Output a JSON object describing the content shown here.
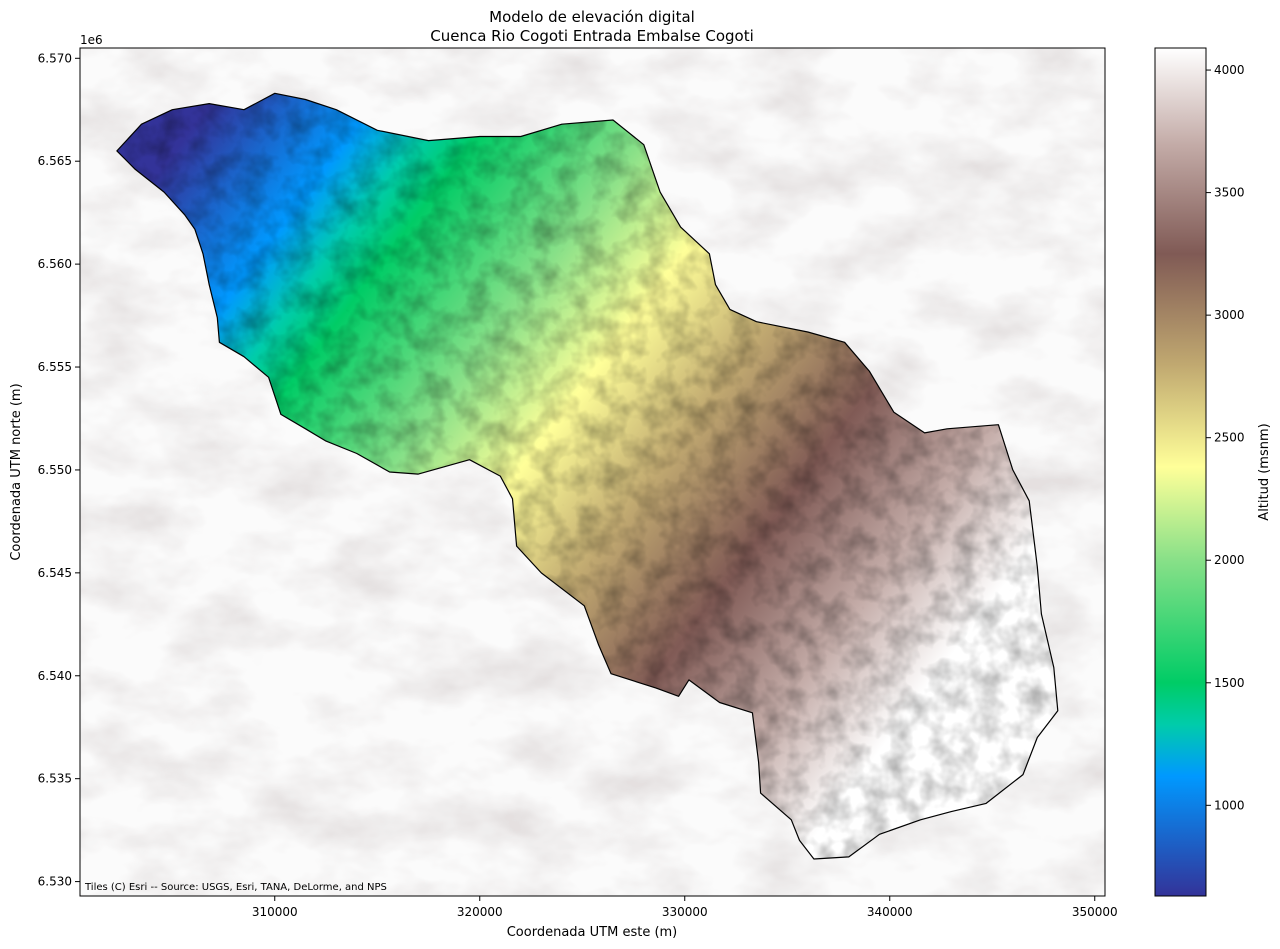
{
  "map": {
    "title": "Modelo de elevación digital",
    "subtitle": "Cuenca Rio Cogoti Entrada Embalse Cogoti",
    "xlabel": "Coordenada UTM este (m)",
    "ylabel": "Coordenada UTM norte (m)",
    "y_offset_label": "1e6",
    "attribution": "Tiles (C) Esri -- Source: USGS, Esri, TANA, DeLorme, and NPS",
    "x_range": [
      300500,
      350500
    ],
    "y_range": [
      6529300,
      6570500
    ],
    "x_ticks": [
      310000,
      320000,
      330000,
      340000,
      350000
    ],
    "x_tick_labels": [
      "310000",
      "320000",
      "330000",
      "340000",
      "350000"
    ],
    "y_ticks": [
      6530000,
      6535000,
      6540000,
      6545000,
      6550000,
      6555000,
      6560000,
      6565000,
      6570000
    ],
    "y_tick_labels": [
      "6.530",
      "6.535",
      "6.540",
      "6.545",
      "6.550",
      "6.555",
      "6.560",
      "6.565",
      "6.570"
    ],
    "basemap": "hillshade",
    "basin_outline_color": "#000000"
  },
  "colorbar": {
    "label": "Altitud (msnm)",
    "colormap": "terrain",
    "range": [
      630,
      4090
    ],
    "ticks": [
      1000,
      1500,
      2000,
      2500,
      3000,
      3500,
      4000
    ],
    "tick_labels": [
      "1000",
      "1500",
      "2000",
      "2500",
      "3000",
      "3500",
      "4000"
    ],
    "stops": [
      {
        "value": 630,
        "color": "#333399"
      },
      {
        "value": 1120,
        "color": "#0099ff"
      },
      {
        "value": 1330,
        "color": "#00ccaa"
      },
      {
        "value": 1500,
        "color": "#00cc66"
      },
      {
        "value": 2000,
        "color": "#88e088"
      },
      {
        "value": 2380,
        "color": "#ffff99"
      },
      {
        "value": 2800,
        "color": "#c0a870"
      },
      {
        "value": 3250,
        "color": "#805a55"
      },
      {
        "value": 3700,
        "color": "#c4aca8"
      },
      {
        "value": 4090,
        "color": "#ffffff"
      }
    ]
  },
  "chart_data": {
    "type": "heatmap",
    "title": "Modelo de elevación digital",
    "subtitle": "Cuenca Rio Cogoti Entrada Embalse Cogoti",
    "xlabel": "Coordenada UTM este (m)",
    "ylabel": "Coordenada UTM norte (m)",
    "value_label": "Altitud (msnm)",
    "value_range": [
      630,
      4090
    ],
    "basin_outline": [
      [
        302300,
        6565500
      ],
      [
        303500,
        6566800
      ],
      [
        305000,
        6567500
      ],
      [
        306800,
        6567800
      ],
      [
        308500,
        6567500
      ],
      [
        310000,
        6568300
      ],
      [
        311500,
        6568000
      ],
      [
        313000,
        6567500
      ],
      [
        315000,
        6566500
      ],
      [
        317500,
        6566000
      ],
      [
        320000,
        6566200
      ],
      [
        322000,
        6566200
      ],
      [
        324000,
        6566800
      ],
      [
        326500,
        6567000
      ],
      [
        328000,
        6565800
      ],
      [
        328800,
        6563500
      ],
      [
        329800,
        6561800
      ],
      [
        331200,
        6560500
      ],
      [
        331500,
        6559000
      ],
      [
        332200,
        6557800
      ],
      [
        333500,
        6557200
      ],
      [
        336000,
        6556700
      ],
      [
        337800,
        6556200
      ],
      [
        339000,
        6554800
      ],
      [
        340200,
        6552800
      ],
      [
        341700,
        6551800
      ],
      [
        342800,
        6552000
      ],
      [
        345300,
        6552200
      ],
      [
        346000,
        6550000
      ],
      [
        346800,
        6548500
      ],
      [
        347200,
        6545300
      ],
      [
        347400,
        6543000
      ],
      [
        348000,
        6540400
      ],
      [
        348200,
        6538300
      ],
      [
        347200,
        6537000
      ],
      [
        346500,
        6535200
      ],
      [
        344700,
        6533800
      ],
      [
        343000,
        6533400
      ],
      [
        341500,
        6533000
      ],
      [
        339500,
        6532300
      ],
      [
        338000,
        6531200
      ],
      [
        336300,
        6531100
      ],
      [
        335600,
        6532000
      ],
      [
        335200,
        6533000
      ],
      [
        333700,
        6534300
      ],
      [
        333600,
        6535800
      ],
      [
        333300,
        6538200
      ],
      [
        331700,
        6538700
      ],
      [
        330200,
        6539800
      ],
      [
        329700,
        6539000
      ],
      [
        328600,
        6539400
      ],
      [
        326400,
        6540100
      ],
      [
        325800,
        6541500
      ],
      [
        325100,
        6543400
      ],
      [
        323000,
        6545000
      ],
      [
        321800,
        6546300
      ],
      [
        321600,
        6548600
      ],
      [
        321000,
        6549700
      ],
      [
        319500,
        6550500
      ],
      [
        317000,
        6549800
      ],
      [
        315600,
        6549900
      ],
      [
        314000,
        6550800
      ],
      [
        312500,
        6551400
      ],
      [
        311500,
        6552000
      ],
      [
        310300,
        6552700
      ],
      [
        309700,
        6554500
      ],
      [
        308500,
        6555500
      ],
      [
        307300,
        6556200
      ],
      [
        307200,
        6557400
      ],
      [
        306800,
        6559000
      ],
      [
        306500,
        6560500
      ],
      [
        306100,
        6561700
      ],
      [
        305600,
        6562400
      ],
      [
        304600,
        6563500
      ],
      [
        303200,
        6564600
      ],
      [
        302300,
        6565500
      ]
    ]
  }
}
